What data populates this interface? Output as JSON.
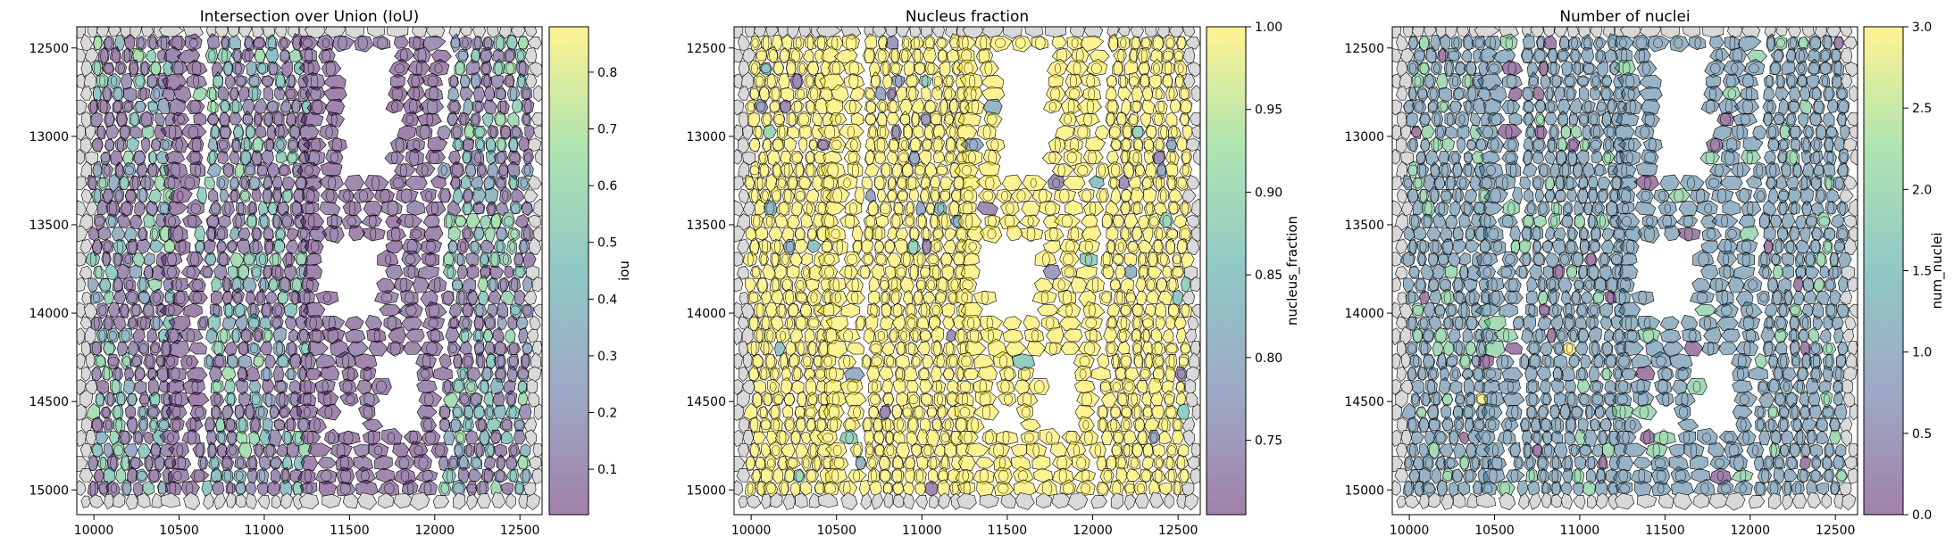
{
  "colormap": [
    "#440154",
    "#3b528b",
    "#21918c",
    "#5ec962",
    "#fde725"
  ],
  "colors": {
    "viridis_low": "#440154",
    "viridis_mid": "#21918c",
    "viridis_high": "#fde725",
    "null_cell": "#d9d9d9",
    "cell_edge": "#000000"
  },
  "chart_data": [
    {
      "type": "heatmap",
      "subtype": "spatial-cell-polygons",
      "title": "Intersection over Union (IoU)",
      "colorbar_label": "iou",
      "x_ticks": [
        "10000",
        "10500",
        "11000",
        "11500",
        "12000",
        "12500"
      ],
      "y_ticks": [
        "12500",
        "13000",
        "13500",
        "14000",
        "14500",
        "15000"
      ],
      "x_range": [
        9900,
        12630
      ],
      "y_range": [
        12380,
        15140
      ],
      "y_inverted": true,
      "colorbar_ticks": [
        "0.1",
        "0.2",
        "0.3",
        "0.4",
        "0.5",
        "0.6",
        "0.7",
        "0.8"
      ],
      "color_range": [
        0.02,
        0.88
      ],
      "alpha": 0.5,
      "value_summary": "mostly low (~0.05) with clusters 0.3-0.6 in dense regions"
    },
    {
      "type": "heatmap",
      "subtype": "spatial-cell-polygons",
      "title": "Nucleus fraction",
      "colorbar_label": "nucleus_fraction",
      "x_ticks": [
        "10000",
        "10500",
        "11000",
        "11500",
        "12000",
        "12500"
      ],
      "y_ticks": [
        "12500",
        "13000",
        "13500",
        "14000",
        "14500",
        "15000"
      ],
      "x_range": [
        9900,
        12630
      ],
      "y_range": [
        12380,
        15140
      ],
      "y_inverted": true,
      "colorbar_ticks": [
        "0.75",
        "0.80",
        "0.85",
        "0.90",
        "0.95",
        "1.00"
      ],
      "color_range": [
        0.705,
        1.0
      ],
      "alpha": 0.5,
      "value_summary": "almost all cells at 1.00, a few between 0.75 and 0.90"
    },
    {
      "type": "heatmap",
      "subtype": "spatial-cell-polygons",
      "title": "Number of nuclei",
      "colorbar_label": "num_nuclei",
      "x_ticks": [
        "10000",
        "10500",
        "11000",
        "11500",
        "12000",
        "12500"
      ],
      "y_ticks": [
        "12500",
        "13000",
        "13500",
        "14000",
        "14500",
        "15000"
      ],
      "x_range": [
        9900,
        12630
      ],
      "y_range": [
        12380,
        15140
      ],
      "y_inverted": true,
      "colorbar_ticks": [
        "0.0",
        "0.5",
        "1.0",
        "1.5",
        "2.0",
        "2.5",
        "3.0"
      ],
      "color_range": [
        0.0,
        3.0
      ],
      "alpha": 0.5,
      "value_summary": "most cells have 1 nucleus, some 2, few 0 or 3"
    }
  ]
}
